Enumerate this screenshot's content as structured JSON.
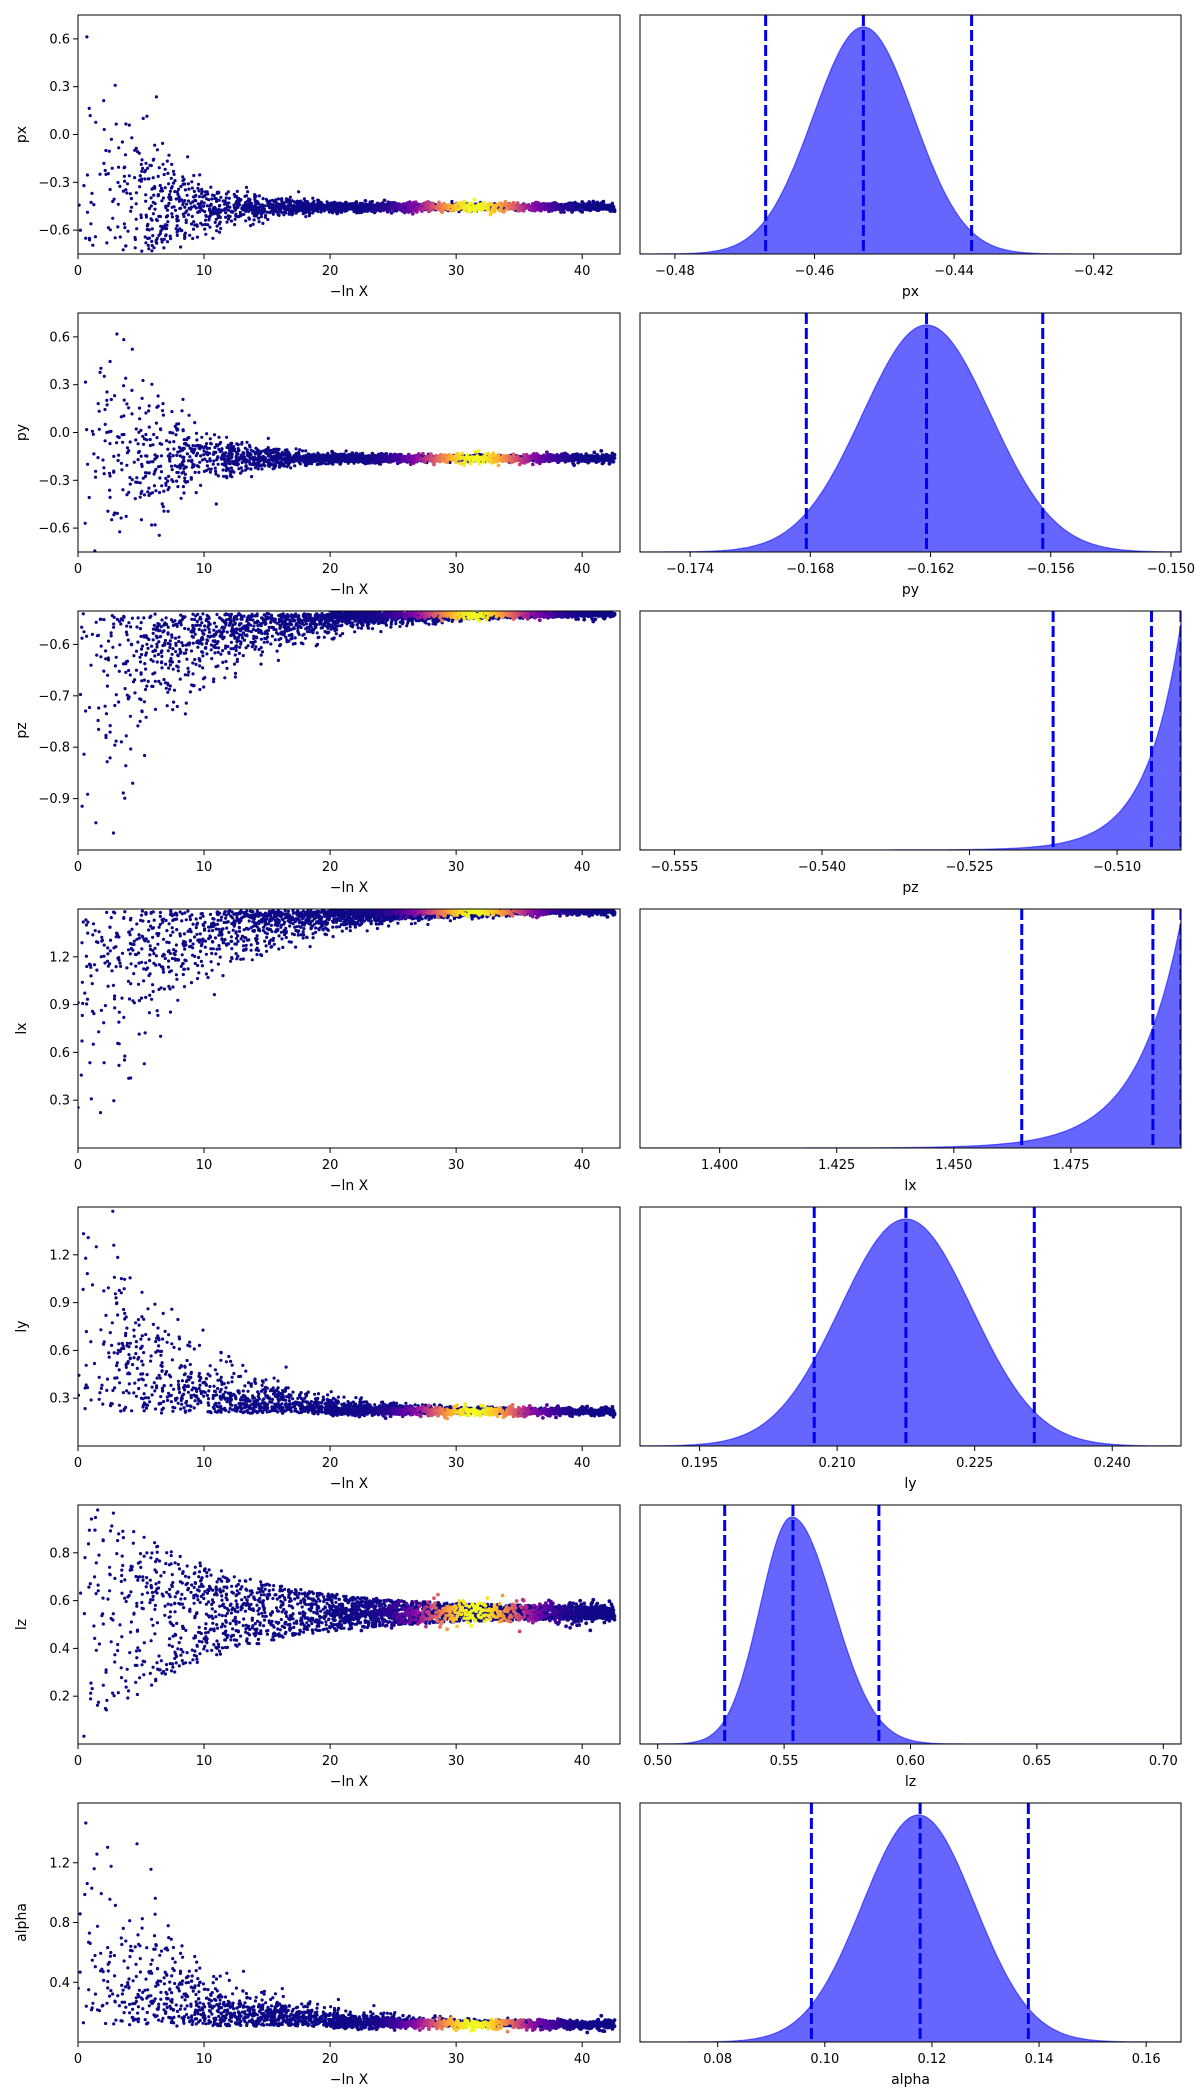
{
  "chart_data": [
    {
      "type": "scatter",
      "xlabel": "−ln X",
      "ylabel": "px",
      "xlim": [
        0,
        43
      ],
      "ylim": [
        -0.75,
        0.75
      ],
      "xticks": [
        0,
        10,
        20,
        30,
        40
      ],
      "yticks": [
        -0.6,
        -0.3,
        0.0,
        0.3,
        0.6
      ],
      "ytick_labels": [
        "−0.6",
        "−0.3",
        "0.0",
        "0.3",
        "0.6"
      ],
      "colormap": "plasma",
      "shape": "funnel",
      "converged_value": -0.455
    },
    {
      "type": "area",
      "xlabel": "px",
      "xlim": [
        -0.485,
        -0.4075
      ],
      "xticks": [
        -0.48,
        -0.46,
        -0.44,
        -0.42
      ],
      "xtick_labels": [
        "−0.48",
        "−0.46",
        "−0.44",
        "−0.42"
      ],
      "distribution": {
        "kind": "gaussian",
        "mean": -0.453,
        "sd": 0.0072
      },
      "quantile_lines": [
        -0.467,
        -0.453,
        -0.4375
      ],
      "fill_color": "#6666ff",
      "line_color": "#0000ff"
    },
    {
      "type": "scatter",
      "xlabel": "−ln X",
      "ylabel": "py",
      "xlim": [
        0,
        43
      ],
      "ylim": [
        -0.75,
        0.75
      ],
      "xticks": [
        0,
        10,
        20,
        30,
        40
      ],
      "yticks": [
        -0.6,
        -0.3,
        0.0,
        0.3,
        0.6
      ],
      "ytick_labels": [
        "−0.6",
        "−0.3",
        "0.0",
        "0.3",
        "0.6"
      ],
      "colormap": "plasma",
      "shape": "funnel",
      "converged_value": -0.162
    },
    {
      "type": "area",
      "xlabel": "py",
      "xlim": [
        -0.1765,
        -0.1495
      ],
      "xticks": [
        -0.174,
        -0.168,
        -0.162,
        -0.156,
        -0.15
      ],
      "xtick_labels": [
        "−0.174",
        "−0.168",
        "−0.162",
        "−0.156",
        "−0.150"
      ],
      "distribution": {
        "kind": "gaussian",
        "mean": -0.1622,
        "sd": 0.0032
      },
      "quantile_lines": [
        -0.1682,
        -0.1622,
        -0.1564
      ],
      "fill_color": "#6666ff",
      "line_color": "#0000ff"
    },
    {
      "type": "scatter",
      "xlabel": "−ln X",
      "ylabel": "pz",
      "xlim": [
        0,
        43
      ],
      "ylim": [
        -1.0,
        -0.535
      ],
      "xticks": [
        0,
        10,
        20,
        30,
        40
      ],
      "yticks": [
        -0.9,
        -0.8,
        -0.7,
        -0.6
      ],
      "ytick_labels": [
        "−0.9",
        "−0.8",
        "−0.7",
        "−0.6"
      ],
      "colormap": "plasma",
      "shape": "upper-wedge",
      "converged_value": -0.54
    },
    {
      "type": "area",
      "xlabel": "pz",
      "xlim": [
        -0.5585,
        -0.5035
      ],
      "xticks": [
        -0.555,
        -0.54,
        -0.525,
        -0.51
      ],
      "xtick_labels": [
        "−0.555",
        "−0.540",
        "−0.525",
        "−0.510"
      ],
      "distribution": {
        "kind": "exponential",
        "mode": -0.5035,
        "scale": 0.0035
      },
      "quantile_lines": [
        -0.5165,
        -0.5065,
        -0.5035
      ],
      "fill_color": "#6666ff",
      "line_color": "#0000ff"
    },
    {
      "type": "scatter",
      "xlabel": "−ln X",
      "ylabel": "lx",
      "xlim": [
        0,
        43
      ],
      "ylim": [
        0.0,
        1.5
      ],
      "xticks": [
        0,
        10,
        20,
        30,
        40
      ],
      "yticks": [
        0.3,
        0.6,
        0.9,
        1.2
      ],
      "ytick_labels": [
        "0.3",
        "0.6",
        "0.9",
        "1.2"
      ],
      "colormap": "plasma",
      "shape": "upper-wedge",
      "converged_value": 1.49
    },
    {
      "type": "area",
      "xlabel": "lx",
      "xlim": [
        1.383,
        1.4985
      ],
      "xticks": [
        1.4,
        1.425,
        1.45,
        1.475
      ],
      "xtick_labels": [
        "1.400",
        "1.425",
        "1.450",
        "1.475"
      ],
      "distribution": {
        "kind": "exponential",
        "mode": 1.4985,
        "scale": 0.0095
      },
      "quantile_lines": [
        1.4645,
        1.4925,
        1.4985
      ],
      "fill_color": "#6666ff",
      "line_color": "#0000ff"
    },
    {
      "type": "scatter",
      "xlabel": "−ln X",
      "ylabel": "ly",
      "xlim": [
        0,
        43
      ],
      "ylim": [
        0.0,
        1.5
      ],
      "xticks": [
        0,
        10,
        20,
        30,
        40
      ],
      "yticks": [
        0.3,
        0.6,
        0.9,
        1.2
      ],
      "ytick_labels": [
        "0.3",
        "0.6",
        "0.9",
        "1.2"
      ],
      "colormap": "plasma",
      "shape": "lower-wedge",
      "converged_value": 0.215
    },
    {
      "type": "area",
      "xlabel": "ly",
      "xlim": [
        0.1885,
        0.2475
      ],
      "xticks": [
        0.195,
        0.21,
        0.225,
        0.24
      ],
      "xtick_labels": [
        "0.195",
        "0.210",
        "0.225",
        "0.240"
      ],
      "distribution": {
        "kind": "gaussian",
        "mean": 0.2175,
        "sd": 0.0072
      },
      "quantile_lines": [
        0.2075,
        0.2175,
        0.2315
      ],
      "fill_color": "#6666ff",
      "line_color": "#0000ff"
    },
    {
      "type": "scatter",
      "xlabel": "−ln X",
      "ylabel": "lz",
      "xlim": [
        0,
        43
      ],
      "ylim": [
        0.0,
        1.0
      ],
      "xticks": [
        0,
        10,
        20,
        30,
        40
      ],
      "yticks": [
        0.2,
        0.4,
        0.6,
        0.8
      ],
      "ytick_labels": [
        "0.2",
        "0.4",
        "0.6",
        "0.8"
      ],
      "colormap": "plasma",
      "shape": "funnel-mid",
      "converged_value": 0.55
    },
    {
      "type": "area",
      "xlabel": "lz",
      "xlim": [
        0.493,
        0.707
      ],
      "xticks": [
        0.5,
        0.55,
        0.6,
        0.65,
        0.7
      ],
      "xtick_labels": [
        "0.50",
        "0.55",
        "0.60",
        "0.65",
        "0.70"
      ],
      "distribution": {
        "kind": "skewed",
        "mean": 0.553,
        "sd_left": 0.0125,
        "sd_right": 0.0165
      },
      "quantile_lines": [
        0.5265,
        0.5535,
        0.5875
      ],
      "fill_color": "#6666ff",
      "line_color": "#0000ff"
    },
    {
      "type": "scatter",
      "xlabel": "−ln X",
      "ylabel": "alpha",
      "xlim": [
        0,
        43
      ],
      "ylim": [
        0.0,
        1.6
      ],
      "xticks": [
        0,
        10,
        20,
        30,
        40
      ],
      "yticks": [
        0.4,
        0.8,
        1.2
      ],
      "ytick_labels": [
        "0.4",
        "0.8",
        "1.2"
      ],
      "colormap": "plasma",
      "shape": "lower-wedge",
      "converged_value": 0.118
    },
    {
      "type": "area",
      "xlabel": "alpha",
      "xlim": [
        0.0655,
        0.1665
      ],
      "xticks": [
        0.08,
        0.1,
        0.12,
        0.14,
        0.16
      ],
      "xtick_labels": [
        "0.08",
        "0.10",
        "0.12",
        "0.14",
        "0.16"
      ],
      "distribution": {
        "kind": "gaussian",
        "mean": 0.1175,
        "sd": 0.0105
      },
      "quantile_lines": [
        0.0975,
        0.1178,
        0.138
      ],
      "fill_color": "#6666ff",
      "line_color": "#0000ff"
    }
  ]
}
